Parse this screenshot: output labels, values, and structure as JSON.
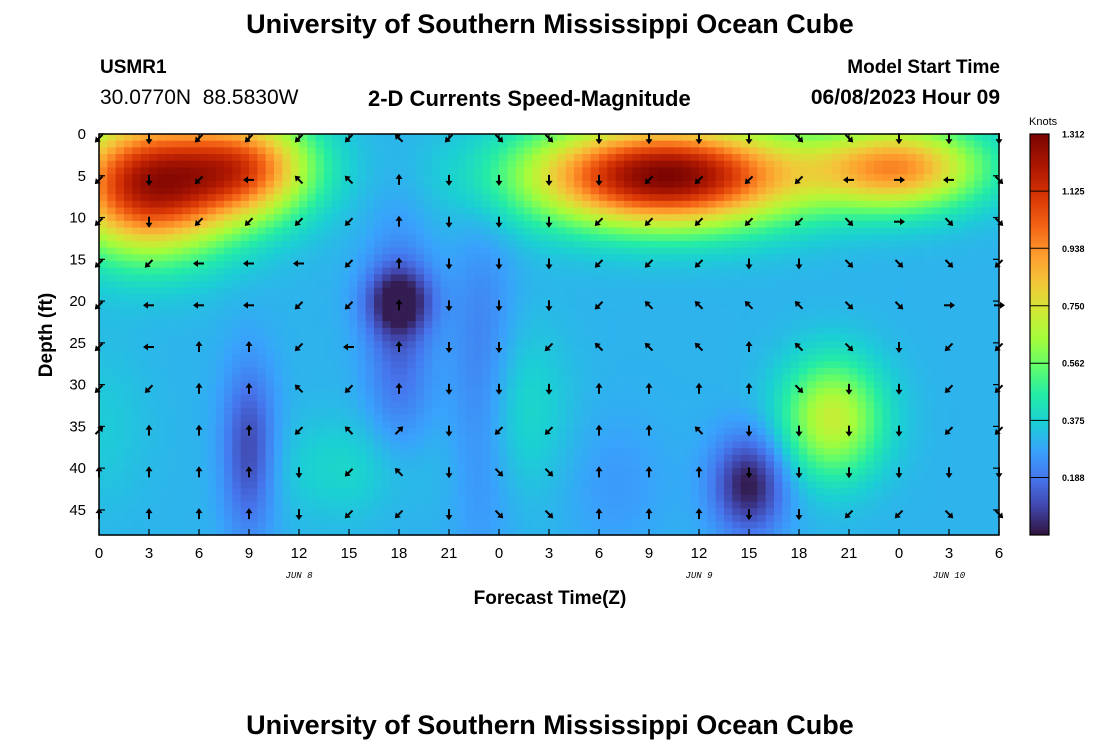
{
  "header": {
    "title": "University of Southern Mississippi Ocean Cube",
    "station_id": "USMR1",
    "coords": "30.0770N  88.5830W",
    "plot_title": "2-D Currents Speed-Magnitude",
    "model_label": "Model Start Time",
    "model_time": "06/08/2023 Hour 09"
  },
  "footer": {
    "title": "University of Southern Mississippi Ocean Cube"
  },
  "chart_data": {
    "type": "heatmap",
    "xlabel": "Forecast Time(Z)",
    "ylabel": "Depth (ft)",
    "x_ticks": [
      "0",
      "3",
      "6",
      "9",
      "12",
      "15",
      "18",
      "21",
      "0",
      "3",
      "6",
      "9",
      "12",
      "15",
      "18",
      "21",
      "0",
      "3",
      "6"
    ],
    "date_labels": [
      {
        "text": "JUN 8",
        "at_tick": 4
      },
      {
        "text": "JUN 9",
        "at_tick": 12
      },
      {
        "text": "JUN 10",
        "at_tick": 17
      }
    ],
    "y_ticks": [
      0,
      5,
      10,
      15,
      20,
      25,
      30,
      35,
      40,
      45
    ],
    "ylim": [
      0,
      48
    ],
    "colorbar": {
      "unit": "Knots",
      "range": [
        0,
        1.312
      ],
      "ticks": [
        "1.312",
        "1.125",
        "0.938",
        "0.750",
        "0.562",
        "0.375",
        "0.188"
      ],
      "tick_values": [
        1.312,
        1.125,
        0.938,
        0.75,
        0.562,
        0.375,
        0.188
      ]
    },
    "speed_blobs": [
      {
        "x": 3,
        "y": 6,
        "sx": 5,
        "sy": 8,
        "amp": 0.9
      },
      {
        "x": 9,
        "y": 4,
        "sx": 4,
        "sy": 6,
        "amp": 0.6
      },
      {
        "x": 34,
        "y": 5,
        "sx": 8,
        "sy": 6,
        "amp": 1.0
      },
      {
        "x": 48,
        "y": 4,
        "sx": 5,
        "sy": 5,
        "amp": 0.6
      },
      {
        "x": 44,
        "y": 34,
        "sx": 3,
        "sy": 7,
        "amp": 0.4
      },
      {
        "x": 25,
        "y": 33,
        "sx": 3,
        "sy": 10,
        "amp": 0.1
      },
      {
        "x": 15,
        "y": 40,
        "sx": 5,
        "sy": 6,
        "amp": 0.08
      },
      {
        "x": 0,
        "y": 35,
        "sx": 3,
        "sy": 10,
        "amp": 0.05
      },
      {
        "x": 18,
        "y": 20,
        "sx": 2,
        "sy": 4,
        "amp": -0.25
      },
      {
        "x": 18,
        "y": 25,
        "sx": 2,
        "sy": 14,
        "amp": -0.15
      },
      {
        "x": 9,
        "y": 38,
        "sx": 1.6,
        "sy": 10,
        "amp": -0.22
      },
      {
        "x": 39,
        "y": 42,
        "sx": 2.2,
        "sy": 6,
        "amp": -0.3
      },
      {
        "x": 23,
        "y": 30,
        "sx": 2,
        "sy": 18,
        "amp": -0.13
      },
      {
        "x": 31,
        "y": 42,
        "sx": 3,
        "sy": 8,
        "amp": -0.05
      }
    ],
    "speed_base": 0.31,
    "arrow_times": [
      0,
      3,
      6,
      9,
      12,
      15,
      18,
      21,
      24,
      27,
      30,
      33,
      36,
      39,
      42,
      45,
      48,
      51,
      54
    ],
    "arrow_depths": [
      0.5,
      5.5,
      10.5,
      15.5,
      20.5,
      25.5,
      30.5,
      35.5,
      40.5,
      45.5
    ],
    "arrow_angles_deg": [
      [
        135,
        90,
        135,
        135,
        135,
        135,
        225,
        135,
        45,
        45,
        90,
        90,
        90,
        90,
        45,
        45,
        90,
        90,
        90
      ],
      [
        135,
        90,
        135,
        180,
        225,
        225,
        270,
        90,
        90,
        90,
        90,
        135,
        135,
        135,
        135,
        180,
        0,
        180,
        45
      ],
      [
        135,
        90,
        135,
        135,
        135,
        135,
        270,
        90,
        90,
        90,
        135,
        135,
        135,
        135,
        135,
        45,
        0,
        45,
        45
      ],
      [
        135,
        135,
        180,
        180,
        180,
        135,
        270,
        90,
        90,
        90,
        135,
        135,
        135,
        90,
        90,
        45,
        45,
        45,
        135
      ],
      [
        135,
        180,
        180,
        180,
        135,
        135,
        270,
        90,
        90,
        90,
        135,
        225,
        225,
        225,
        225,
        45,
        45,
        0,
        0
      ],
      [
        135,
        180,
        270,
        270,
        135,
        180,
        270,
        90,
        90,
        135,
        225,
        225,
        225,
        270,
        225,
        45,
        90,
        135,
        135
      ],
      [
        135,
        135,
        270,
        270,
        225,
        135,
        270,
        90,
        90,
        90,
        270,
        270,
        270,
        270,
        45,
        90,
        90,
        135,
        135
      ],
      [
        315,
        270,
        270,
        270,
        135,
        225,
        315,
        90,
        135,
        135,
        270,
        270,
        225,
        90,
        90,
        90,
        90,
        135,
        135
      ],
      [
        270,
        270,
        270,
        270,
        90,
        135,
        225,
        90,
        45,
        45,
        270,
        270,
        270,
        90,
        90,
        90,
        90,
        90,
        90
      ],
      [
        270,
        270,
        270,
        270,
        90,
        135,
        135,
        90,
        45,
        45,
        270,
        270,
        270,
        90,
        90,
        135,
        135,
        45,
        45
      ]
    ]
  }
}
